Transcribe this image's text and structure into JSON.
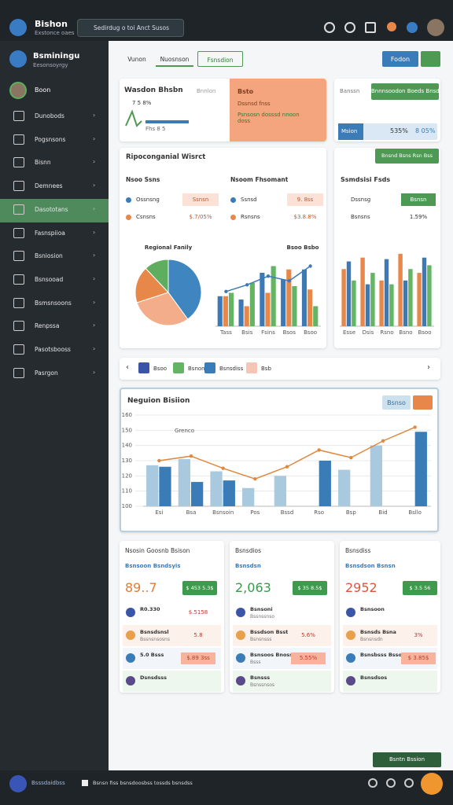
{
  "header": {
    "title": "Bishon",
    "subtitle": "Exstonce oaes",
    "search": "Sedirdug o toi Anct Susos"
  },
  "sidebar": {
    "title": "Bsminingu",
    "subtitle": "Eesonsoyrgy",
    "user": "Boon",
    "items": [
      "Dunobods",
      "Pogsnsons",
      "Bisnn",
      "Demnees",
      "Dasototans",
      "Fasnspiioa",
      "Bsniosion",
      "Bsnsooad",
      "Bsmsnsoons",
      "Renpssa",
      "Pasotsbooss",
      "Pasrgon"
    ]
  },
  "tabs": [
    "Vunon",
    "Nuosnson",
    "Fsnsdion"
  ],
  "actions": {
    "primary": "Fodon"
  },
  "summary": {
    "title": "Wasdon Bhsbn",
    "tag": "Bnnlon",
    "figures": "7 5 8%",
    "caption": "Fhs 8 5",
    "panel_title": "Bsto",
    "panel_text": "Dssnsd fnss",
    "panel_link": "Psnsosn dosssd nnoon doss"
  },
  "side": {
    "label": "Banssn",
    "button": "Bnnnsoodon Boeds Bnsd",
    "metric": "Msion",
    "value": "535%",
    "value2": "8 05%"
  },
  "market": {
    "title": "Ripoconganial Wisrct",
    "left": {
      "title": "Nsoo Ssns",
      "rows": [
        {
          "label": "Ossnsng",
          "value": "Ssnsn"
        },
        {
          "label": "Csnsns",
          "value": "$.7/05%"
        }
      ]
    },
    "right": {
      "title": "Nsoom Fhsomant",
      "rows": [
        {
          "label": "Ssnsd",
          "value": "9. 8ss"
        },
        {
          "label": "Rsnsns",
          "value": "$3.8.8%"
        }
      ]
    }
  },
  "trend": {
    "button": "Bnsnd Bsns Rsn Bss",
    "title": "Ssmdsisi Fsds",
    "rows": [
      {
        "label": "Dssnsg",
        "value": "Bsnsn"
      },
      {
        "label": "Bsnsns",
        "value": "1.59%"
      }
    ]
  },
  "nav": [
    "Bsoo",
    "Bsnon",
    "Bsnsdiss",
    "Bsb"
  ],
  "main_chart_button": "Bsnso",
  "chart_data": [
    {
      "type": "pie",
      "title": "Regional Fanily",
      "values": [
        40,
        30,
        18,
        12
      ],
      "colors": [
        "#3f86c1",
        "#f3ad8a",
        "#e8874a",
        "#5fae5f"
      ]
    },
    {
      "type": "bar",
      "title": "Bsoo Bsbo",
      "categories": [
        "Tass",
        "Bsis",
        "Fsins",
        "Bsos",
        "Bsoo"
      ],
      "ylim": [
        0,
        100
      ],
      "series": [
        {
          "color": "#3d7ab5",
          "values": [
            45,
            40,
            80,
            70,
            85
          ]
        },
        {
          "color": "#e8874a",
          "values": [
            45,
            30,
            50,
            85,
            55
          ]
        },
        {
          "color": "#63b463",
          "values": [
            50,
            65,
            90,
            60,
            30
          ]
        },
        {
          "type": "line",
          "color": "#3d7ab5",
          "values": [
            52,
            62,
            75,
            68,
            90
          ]
        }
      ]
    },
    {
      "type": "bar",
      "categories": [
        "Esse",
        "Dsis",
        "Rsno",
        "Bsno",
        "Bsoo"
      ],
      "ylim": [
        0,
        100
      ],
      "series": [
        {
          "color": "#e8874a",
          "values": [
            75,
            90,
            60,
            95,
            70
          ]
        },
        {
          "color": "#3d7ab5",
          "values": [
            85,
            55,
            88,
            60,
            90
          ]
        },
        {
          "color": "#63b463",
          "values": [
            60,
            70,
            55,
            75,
            80
          ]
        }
      ]
    },
    {
      "type": "bar",
      "title": "Neguion Bisiion",
      "subtitle": "Grenco",
      "categories": [
        "Esi",
        "Bsa",
        "Bsnsoin",
        "Pos",
        "Bssd",
        "Rso",
        "Bsp",
        "Bid",
        "Bsllo"
      ],
      "ylim": [
        100,
        160
      ],
      "yticks": [
        100,
        110,
        120,
        130,
        140,
        150,
        160
      ],
      "grid": true,
      "series": [
        {
          "color": "#a9c9de",
          "values": [
            127,
            131,
            123,
            112,
            120,
            null,
            124,
            140,
            null
          ]
        },
        {
          "color": "#3a7cb8",
          "values": [
            126,
            116,
            117,
            null,
            null,
            130,
            null,
            null,
            149
          ]
        },
        {
          "type": "line",
          "color": "#e0883e",
          "values": [
            130,
            133,
            125,
            118,
            126,
            137,
            132,
            143,
            152
          ]
        }
      ]
    }
  ],
  "stats": [
    {
      "title": "Nsosin Goosnb Bsison",
      "subtitle": "Bsnsoon Bsndsyis",
      "value": "89..7",
      "badge": "$ 453 5.3$",
      "rows": [
        {
          "label": "R0.330",
          "value": "$.5158"
        },
        {
          "label": "Bsnsdsnsl",
          "sub": "Bssnsnsosns",
          "value": "5.8"
        },
        {
          "label": "5.0 Bsss",
          "value": "$.89 3ss"
        },
        {
          "label": "Dsnsdsss"
        }
      ]
    },
    {
      "title": "Bsnsdios",
      "subtitle": "Bsnsdsn",
      "value": "2,063",
      "badge": "$ 35 8.5$",
      "rows": [
        {
          "label": "Bsnsoni",
          "sub": "Bssnssnso"
        },
        {
          "label": "Bssdson Bsst",
          "sub": "Bsnsnsss",
          "value": "5.6%"
        },
        {
          "label": "Bsnsoos Bnosss Bsns",
          "sub": "Bsss",
          "value": "5.55%"
        },
        {
          "label": "Bsnsss",
          "sub": "Bsnssnsos"
        }
      ]
    },
    {
      "title": "Bsnsdiss",
      "subtitle": "Bsnsdson Bsnsn",
      "value": "2952",
      "badge": "$ 3.5 56",
      "rows": [
        {
          "label": "Bsnsoon"
        },
        {
          "label": "Bsnsds Bsna",
          "sub": "Bsnsnsdn",
          "value": "3%"
        },
        {
          "label": "Bsnsbsss Bsso",
          "value": "$ 3.85$"
        },
        {
          "label": "Bsnsdsos"
        }
      ]
    }
  ],
  "footer": {
    "button": "Bsntn Bssion",
    "brand": "Bsssdaidbss",
    "text": "Bsnsn fiss bsnsdoosbss tossds bsnsdss"
  }
}
